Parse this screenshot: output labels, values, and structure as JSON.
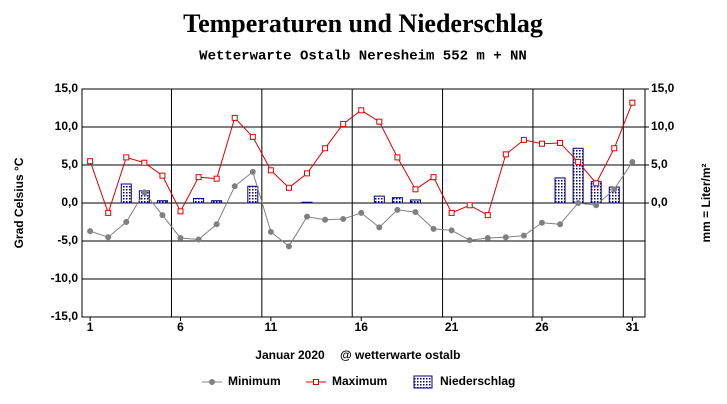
{
  "chart_data": {
    "type": "line",
    "title": "Temperaturen und Niederschlag",
    "subtitle": "Wetterwarte Ostalb Neresheim 552 m + NN",
    "y_label": "Grad Celsius °C",
    "y2_label": "mm = Liter/m²",
    "x_label": "Januar 2020",
    "annotation": "@ wetterwarte ostalb",
    "x": [
      1,
      2,
      3,
      4,
      5,
      6,
      7,
      8,
      9,
      10,
      11,
      12,
      13,
      14,
      15,
      16,
      17,
      18,
      19,
      20,
      21,
      22,
      23,
      24,
      25,
      26,
      27,
      28,
      29,
      30,
      31
    ],
    "xlim": [
      0.55,
      31.7
    ],
    "xticks": [
      1,
      6,
      11,
      16,
      21,
      26,
      31
    ],
    "xgrid": [
      5.5,
      10.5,
      15.5,
      20.5,
      25.5,
      30.5
    ],
    "ylim": [
      -15,
      15
    ],
    "yticks": [
      {
        "value": 15,
        "label": "15,0"
      },
      {
        "value": 10,
        "label": "10,0"
      },
      {
        "value": 5,
        "label": "5,0"
      },
      {
        "value": 0,
        "label": "0,0"
      },
      {
        "value": -5,
        "label": "-5,0"
      },
      {
        "value": -10,
        "label": "-10,0"
      },
      {
        "value": -15,
        "label": "-15,0"
      }
    ],
    "y2lim": [
      -15,
      15
    ],
    "y2ticks": [
      {
        "value": 15,
        "label": "15,0"
      },
      {
        "value": 10,
        "label": "10,0"
      },
      {
        "value": 5,
        "label": "5,0"
      },
      {
        "value": 0,
        "label": "0,0"
      }
    ],
    "grid": true,
    "series": [
      {
        "name": "Minimum",
        "type": "line",
        "marker": "circle",
        "color": "#808080",
        "values": [
          -3.7,
          -4.5,
          -2.5,
          1.4,
          -1.6,
          -4.6,
          -4.8,
          -2.8,
          2.2,
          4.1,
          -3.8,
          -5.7,
          -1.8,
          -2.2,
          -2.1,
          -1.3,
          -3.2,
          -0.9,
          -1.2,
          -3.4,
          -3.6,
          -4.9,
          -4.6,
          -4.5,
          -4.3,
          -2.6,
          -2.8,
          0,
          -0.3,
          1.8,
          5.4
        ]
      },
      {
        "name": "Maximum",
        "type": "line",
        "marker": "square",
        "color": "#e00000",
        "values": [
          5.5,
          -1.3,
          6.0,
          5.3,
          3.6,
          -1.1,
          3.4,
          3.2,
          11.2,
          8.7,
          4.3,
          2.0,
          3.9,
          7.2,
          10.4,
          12.2,
          10.7,
          6.0,
          1.8,
          3.4,
          -1.3,
          -0.3,
          -1.6,
          6.4,
          8.3,
          7.8,
          7.9,
          5.4,
          2.6,
          7.2,
          13.2
        ]
      },
      {
        "name": "Niederschlag",
        "type": "bar",
        "axis": "y2",
        "color": "#000080",
        "values": [
          0,
          0,
          2.5,
          1.6,
          0.3,
          0,
          0.6,
          0.3,
          0,
          2.2,
          0,
          0,
          0.1,
          0,
          0,
          0,
          0.9,
          0.7,
          0.4,
          0,
          0,
          0,
          0,
          0,
          0,
          0,
          3.3,
          7.2,
          2.8,
          2.1,
          0
        ]
      }
    ]
  }
}
